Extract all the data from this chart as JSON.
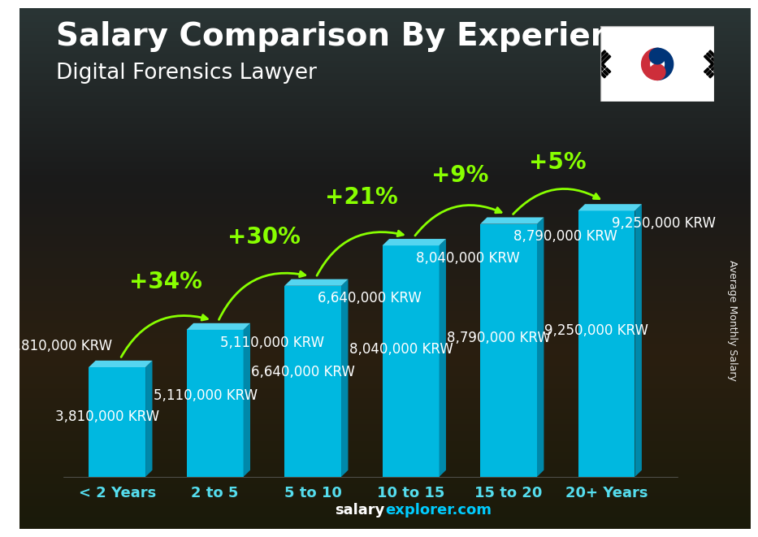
{
  "title": "Salary Comparison By Experience",
  "subtitle": "Digital Forensics Lawyer",
  "categories": [
    "< 2 Years",
    "2 to 5",
    "5 to 10",
    "10 to 15",
    "15 to 20",
    "20+ Years"
  ],
  "values": [
    3810000,
    5110000,
    6640000,
    8040000,
    8790000,
    9250000
  ],
  "value_labels": [
    "3,810,000 KRW",
    "5,110,000 KRW",
    "6,640,000 KRW",
    "8,040,000 KRW",
    "8,790,000 KRW",
    "9,250,000 KRW"
  ],
  "pct_changes": [
    "+34%",
    "+30%",
    "+21%",
    "+9%",
    "+5%"
  ],
  "bar_color_main": "#00B8E0",
  "bar_color_right": "#0088AA",
  "bar_color_top": "#55D5F0",
  "bg_top": "#1a2a2a",
  "bg_bottom": "#3a2a1a",
  "title_color": "#FFFFFF",
  "subtitle_color": "#FFFFFF",
  "label_color": "#55DDEE",
  "value_label_color": "#FFFFFF",
  "pct_color": "#88FF00",
  "footer_salary_color": "#FFFFFF",
  "footer_explorer_color": "#00CCFF",
  "footer_text_salary": "salary",
  "footer_text_explorer": "explorer.com",
  "ylabel": "Average Monthly Salary",
  "ylim": [
    0,
    10500000
  ],
  "title_fontsize": 28,
  "subtitle_fontsize": 19,
  "tick_fontsize": 13,
  "value_fontsize": 12,
  "pct_fontsize": 20,
  "ylabel_fontsize": 9,
  "footer_fontsize": 13
}
